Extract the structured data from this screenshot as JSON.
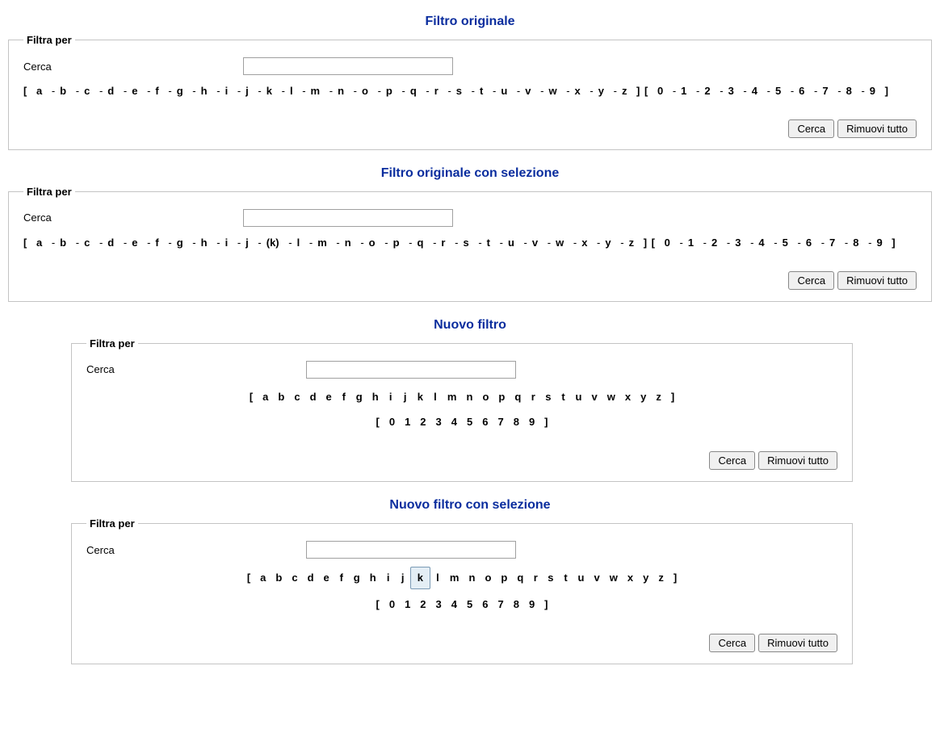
{
  "colors": {
    "heading": "#0a2d9e",
    "border": "#c4c4c4",
    "selected_bg": "#e4eef5",
    "selected_border": "#7a9ab5"
  },
  "letters": [
    "a",
    "b",
    "c",
    "d",
    "e",
    "f",
    "g",
    "h",
    "i",
    "j",
    "k",
    "l",
    "m",
    "n",
    "o",
    "p",
    "q",
    "r",
    "s",
    "t",
    "u",
    "v",
    "w",
    "x",
    "y",
    "z"
  ],
  "digits": [
    "0",
    "1",
    "2",
    "3",
    "4",
    "5",
    "6",
    "7",
    "8",
    "9"
  ],
  "common": {
    "legend": "Filtra per",
    "search_label": "Cerca",
    "search_button": "Cerca",
    "remove_button": "Rimuovi tutto",
    "open_bracket": "[",
    "close_bracket": "]",
    "sep": "-",
    "open_paren": "(",
    "close_paren": ")"
  },
  "sections": [
    {
      "id": "s1",
      "title": "Filtro originale",
      "style": "original",
      "width": "full",
      "selected": null
    },
    {
      "id": "s2",
      "title": "Filtro originale con selezione",
      "style": "original",
      "width": "full",
      "selected": "k"
    },
    {
      "id": "s3",
      "title": "Nuovo filtro",
      "style": "new",
      "width": "narrow",
      "selected": null
    },
    {
      "id": "s4",
      "title": "Nuovo filtro con selezione",
      "style": "new",
      "width": "narrow",
      "selected": "k"
    }
  ]
}
